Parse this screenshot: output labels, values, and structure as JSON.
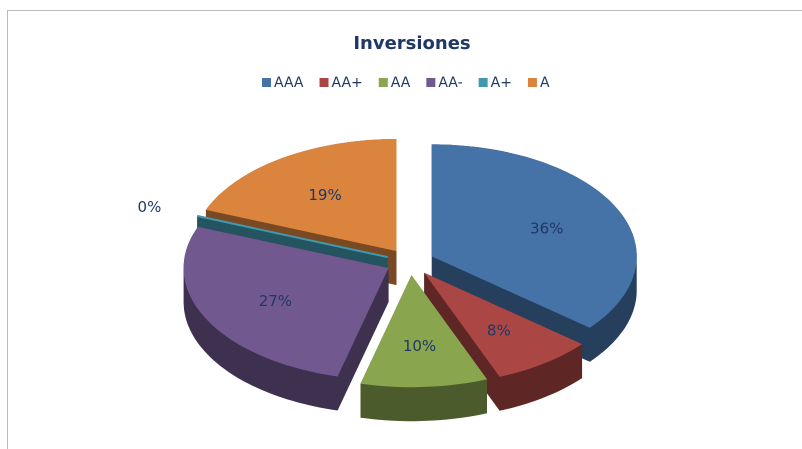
{
  "chart_data": {
    "type": "pie",
    "title": "Inversiones",
    "categories": [
      "AAA",
      "AA+",
      "AA",
      "AA-",
      "A+",
      "A"
    ],
    "values": [
      36,
      8,
      10,
      27,
      0,
      19
    ],
    "value_labels": [
      "36%",
      "8%",
      "10%",
      "27%",
      "0%",
      "19%"
    ],
    "colors": [
      "#4572a7",
      "#aa4643",
      "#89a54e",
      "#71588f",
      "#4198af",
      "#db843d"
    ],
    "legend": "top"
  }
}
